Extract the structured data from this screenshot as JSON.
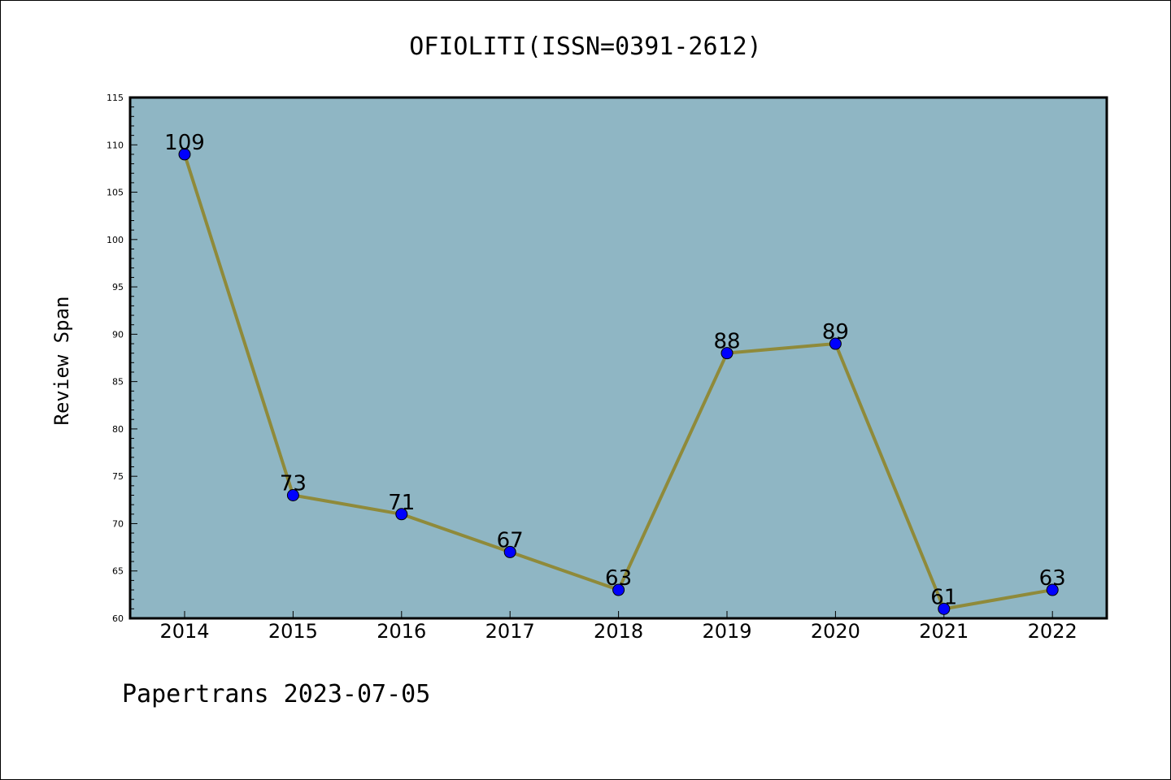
{
  "chart_data": {
    "type": "line",
    "title": "OFIOLITI(ISSN=0391-2612)",
    "xlabel": "",
    "ylabel": "Review Span",
    "categories": [
      "2014",
      "2015",
      "2016",
      "2017",
      "2018",
      "2019",
      "2020",
      "2021",
      "2022"
    ],
    "series": [
      {
        "values": [
          109,
          73,
          71,
          67,
          63,
          88,
          89,
          61,
          63
        ]
      }
    ],
    "ylim": [
      60,
      115
    ],
    "yticks": [
      60,
      65,
      70,
      75,
      80,
      85,
      90,
      95,
      100,
      105,
      110,
      115
    ],
    "grid": false,
    "line_color": "#8f8a3a",
    "marker_color": "#0000ff",
    "plot_background": "#8fb6c4"
  },
  "footer": {
    "text": "Papertrans 2023-07-05"
  }
}
